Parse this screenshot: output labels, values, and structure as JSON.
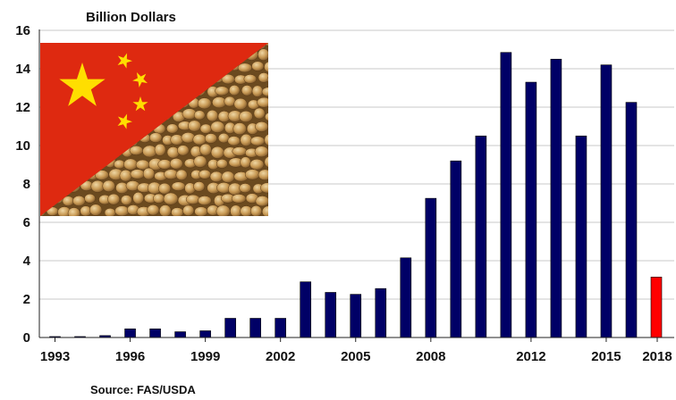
{
  "chart_data": {
    "type": "bar",
    "title": "",
    "ylabel": "Billion Dollars",
    "xlabel": "",
    "source": "Source:  FAS/USDA",
    "ylim": [
      0,
      16
    ],
    "yticks": [
      "0",
      "2",
      "4",
      "6",
      "8",
      "10",
      "12",
      "14",
      "16"
    ],
    "xticks": [
      "1993",
      "1996",
      "1999",
      "2002",
      "2005",
      "2008",
      "2012",
      "2015",
      "2018"
    ],
    "grid": true,
    "legend": "none",
    "categories": [
      "1993",
      "1994",
      "1995",
      "1996",
      "1997",
      "1998",
      "1999",
      "2000",
      "2001",
      "2002",
      "2003",
      "2004",
      "2005",
      "2006",
      "2007",
      "2008",
      "2009",
      "2010",
      "2011",
      "2012",
      "2013",
      "2014",
      "2015",
      "2016",
      "2017"
    ],
    "values": [
      0.05,
      0.05,
      0.1,
      0.45,
      0.45,
      0.3,
      0.35,
      1.0,
      1.0,
      1.0,
      2.9,
      2.35,
      2.25,
      2.55,
      4.15,
      7.25,
      9.2,
      10.5,
      14.85,
      13.3,
      14.5,
      10.5,
      14.2,
      12.25,
      3.15
    ],
    "highlight_index": 24,
    "bar_color": "#000066",
    "highlight_color": "#ff0000",
    "inset_image": "china-flag-soybeans"
  }
}
